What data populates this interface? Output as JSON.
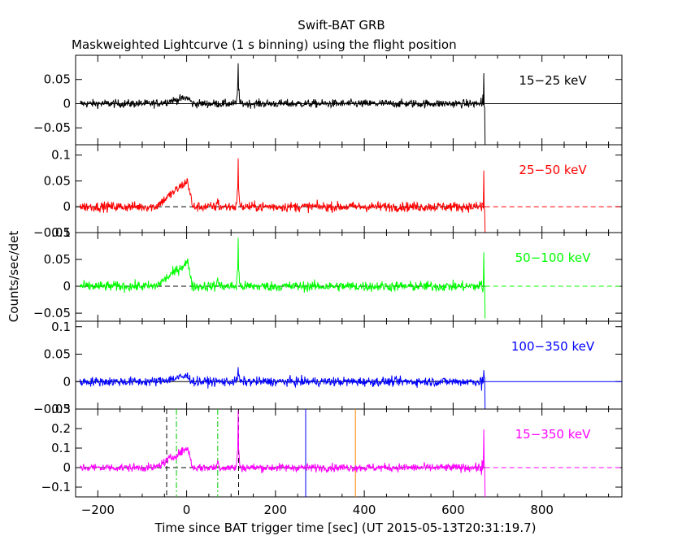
{
  "title": "Swift-BAT GRB",
  "subtitle": "Maskweighted Lightcurve (1 s binning) using the flight position",
  "ylabel": "Counts/sec/det",
  "xlabel": "Time since BAT trigger time [sec] (UT 2015-05-13T20:31:19.7)",
  "x_ticks": [
    "−200",
    "0",
    "200",
    "400",
    "600",
    "800"
  ],
  "chart_data": [
    {
      "type": "line",
      "band": "15-25 keV",
      "label": "15−25 keV",
      "color": "#000000",
      "xlim": [
        -250,
        980
      ],
      "ylim": [
        -0.085,
        0.1
      ],
      "yticks": [
        -0.05,
        0,
        0.05
      ],
      "ytick_labels": [
        "−0.05",
        "0",
        "0.05"
      ],
      "noise": 0.008,
      "bump": 0.012,
      "spike": 0.09,
      "bump2": 0,
      "tail_dip": -0.09,
      "dashed_zero": false
    },
    {
      "type": "line",
      "band": "25-50 keV",
      "label": "25−50 keV",
      "color": "#ff0000",
      "xlim": [
        -250,
        980
      ],
      "ylim": [
        -0.05,
        0.12
      ],
      "yticks": [
        -0.05,
        0,
        0.05,
        0.1
      ],
      "ytick_labels": [
        "−0.05",
        "0",
        "0.05",
        "0.1"
      ],
      "noise": 0.009,
      "bump": 0.05,
      "spike": 0.1,
      "bump2": 0.015,
      "tail_dip": -0.05,
      "dashed_zero": true
    },
    {
      "type": "line",
      "band": "50-100 keV",
      "label": "50−100 keV",
      "color": "#00ff00",
      "xlim": [
        -250,
        980
      ],
      "ylim": [
        -0.065,
        0.1
      ],
      "yticks": [
        -0.05,
        0,
        0.05,
        0.1
      ],
      "ytick_labels": [
        "−0.05",
        "0",
        "0.05",
        "0.1"
      ],
      "noise": 0.009,
      "bump": 0.045,
      "spike": 0.09,
      "bump2": 0.02,
      "tail_dip": -0.06,
      "dashed_zero": true
    },
    {
      "type": "line",
      "band": "100-350 keV",
      "label": "100−350 keV",
      "color": "#0000ff",
      "xlim": [
        -250,
        980
      ],
      "ylim": [
        -0.05,
        0.11
      ],
      "yticks": [
        -0.05,
        0,
        0.05,
        0.1
      ],
      "ytick_labels": [
        "−0.05",
        "0",
        "0.05",
        "0.1"
      ],
      "noise": 0.008,
      "bump": 0.01,
      "spike": 0.03,
      "bump2": 0,
      "tail_dip": -0.05,
      "dashed_zero": false
    },
    {
      "type": "line",
      "band": "15-350 keV",
      "label": "15−350 keV",
      "color": "#ff00ff",
      "xlim": [
        -250,
        980
      ],
      "ylim": [
        -0.15,
        0.3
      ],
      "yticks": [
        -0.1,
        0,
        0.1,
        0.2,
        0.3
      ],
      "ytick_labels": [
        "−0.1",
        "0",
        "0.1",
        "0.2",
        "0.3"
      ],
      "noise": 0.02,
      "bump": 0.1,
      "spike": 0.28,
      "bump2": 0.04,
      "tail_dip": -0.15,
      "dashed_zero": true,
      "markers": [
        {
          "x": -45,
          "color": "#000000",
          "style": "dashed"
        },
        {
          "x": -23,
          "color": "#00cc00",
          "style": "dashdot"
        },
        {
          "x": 70,
          "color": "#00cc00",
          "style": "dashdot"
        },
        {
          "x": 117,
          "color": "#000000",
          "style": "dashed"
        },
        {
          "x": 268,
          "color": "#0000ff",
          "style": "solid"
        },
        {
          "x": 380,
          "color": "#ff8000",
          "style": "solid"
        }
      ]
    }
  ],
  "series_shape": {
    "t_start": -240,
    "t_end": 672,
    "bump_start": -70,
    "bump_peak": 2,
    "bump_end": 12,
    "spike_t": 116,
    "bump2_t": 70
  }
}
